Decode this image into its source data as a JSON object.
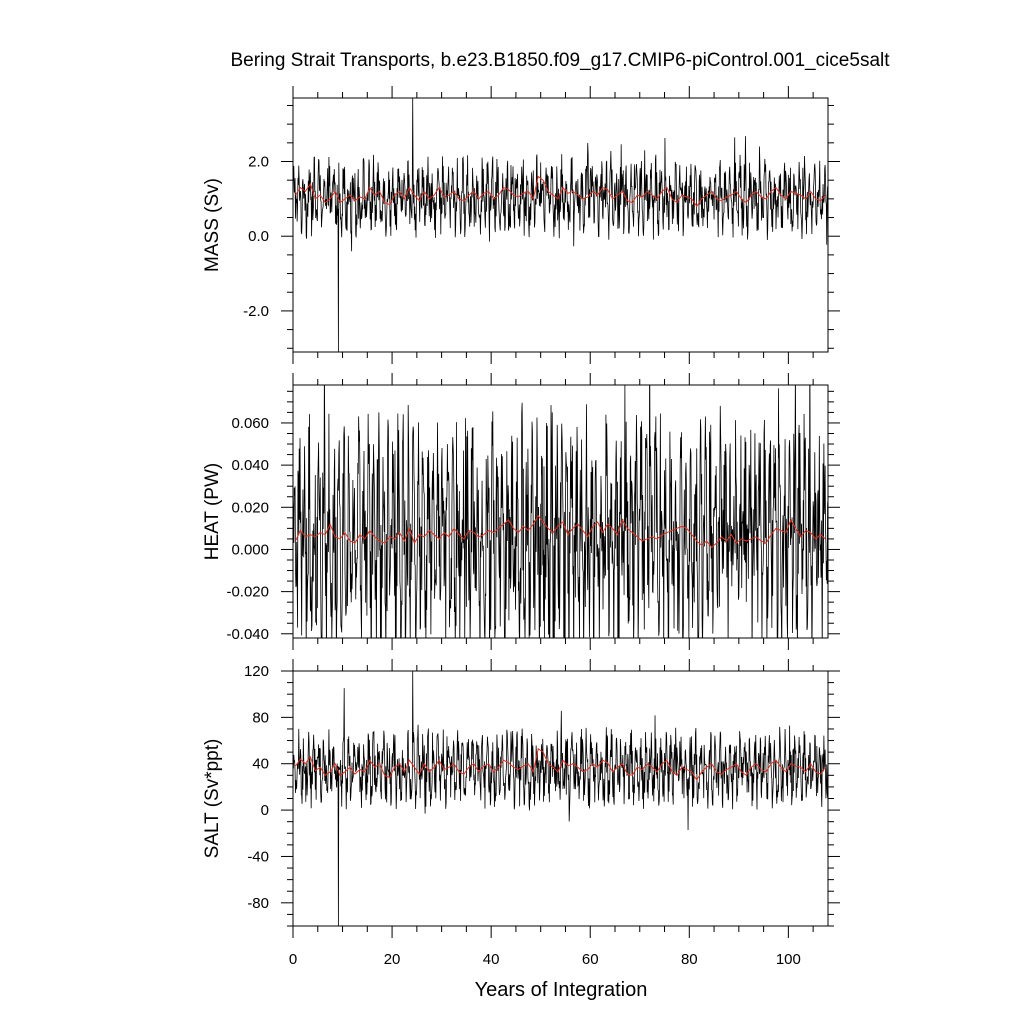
{
  "title": "Bering Strait Transports, b.e23.B1850.f09_g17.CMIP6-piControl.001_cice5salt",
  "xlabel": "Years of Integration",
  "colors": {
    "monthly": "#000000",
    "annual": "#e03020",
    "axis": "#000000",
    "background": "#ffffff"
  },
  "chart_data": [
    {
      "type": "line",
      "ylabel": "MASS (Sv)",
      "xlim": [
        0,
        108
      ],
      "ylim": [
        -3.1,
        3.7
      ],
      "yticks": [
        -2.0,
        0.0,
        2.0
      ],
      "yticklabels": [
        "-2.0",
        "0.0",
        "2.0"
      ],
      "xticks": [
        0,
        20,
        40,
        60,
        80,
        100
      ],
      "xticklabels": [],
      "series": [
        {
          "kind": "monthly",
          "baseline": 1.05,
          "amplitude": 0.55,
          "spike_max": 3.7,
          "spike_min": -3.1,
          "spike_max_x": 24.2,
          "spike_min_x": 9.2
        },
        {
          "kind": "annual",
          "x": [
            0.5,
            1.5,
            2.5,
            3.5,
            4.5,
            5.5,
            6.5,
            7.5,
            8.5,
            9.5,
            10.5,
            11.5,
            12.5,
            13.5,
            14.5,
            15.5,
            16.5,
            17.5,
            18.5,
            19.5,
            20.5,
            21.5,
            22.5,
            23.5,
            24.5,
            25.5,
            26.5,
            27.5,
            28.5,
            29.5,
            30.5,
            31.5,
            32.5,
            33.5,
            34.5,
            35.5,
            36.5,
            37.5,
            38.5,
            39.5,
            40.5,
            41.5,
            42.5,
            43.5,
            44.5,
            45.5,
            46.5,
            47.5,
            48.5,
            49.5,
            50.5,
            51.5,
            52.5,
            53.5,
            54.5,
            55.5,
            56.5,
            57.5,
            58.5,
            59.5,
            60.5,
            61.5,
            62.5,
            63.5,
            64.5,
            65.5,
            66.5,
            67.5,
            68.5,
            69.5,
            70.5,
            71.5,
            72.5,
            73.5,
            74.5,
            75.5,
            76.5,
            77.5,
            78.5,
            79.5,
            80.5,
            81.5,
            82.5,
            83.5,
            84.5,
            85.5,
            86.5,
            87.5,
            88.5,
            89.5,
            90.5,
            91.5,
            92.5,
            93.5,
            94.5,
            95.5,
            96.5,
            97.5,
            98.5,
            99.5,
            100.5,
            101.5,
            102.5,
            103.5,
            104.5,
            105.5,
            106.5,
            107.5
          ],
          "values": [
            1.1,
            1.3,
            1.2,
            1.4,
            1.0,
            1.1,
            0.9,
            1.0,
            1.2,
            0.9,
            1.0,
            1.1,
            0.95,
            1.05,
            1.0,
            1.3,
            1.1,
            1.2,
            0.9,
            0.85,
            1.1,
            1.2,
            1.0,
            1.3,
            1.1,
            0.95,
            1.2,
            1.0,
            1.1,
            1.3,
            1.05,
            1.1,
            1.2,
            1.0,
            0.95,
            1.1,
            1.2,
            1.0,
            1.15,
            1.2,
            1.0,
            1.1,
            1.3,
            1.25,
            1.1,
            1.05,
            1.15,
            1.2,
            1.0,
            1.6,
            1.5,
            1.2,
            1.1,
            1.0,
            1.3,
            1.15,
            1.2,
            1.1,
            1.0,
            1.05,
            1.2,
            1.1,
            1.3,
            1.25,
            1.0,
            1.1,
            1.2,
            0.95,
            0.9,
            1.1,
            1.05,
            1.2,
            1.1,
            1.0,
            1.2,
            1.3,
            1.0,
            0.9,
            1.1,
            1.05,
            1.0,
            0.8,
            1.0,
            1.1,
            1.2,
            1.0,
            0.95,
            1.05,
            1.1,
            1.2,
            1.0,
            0.9,
            1.1,
            1.2,
            1.05,
            1.0,
            1.2,
            1.3,
            1.1,
            1.0,
            1.2,
            1.15,
            1.1,
            1.0,
            1.2,
            1.0,
            0.95,
            1.1
          ]
        }
      ]
    },
    {
      "type": "line",
      "ylabel": "HEAT (PW)",
      "xlim": [
        0,
        108
      ],
      "ylim": [
        -0.042,
        0.078
      ],
      "yticks": [
        -0.04,
        -0.02,
        0.0,
        0.02,
        0.04,
        0.06
      ],
      "yticklabels": [
        "-0.040",
        "-0.020",
        "0.000",
        "0.020",
        "0.040",
        "0.060"
      ],
      "xticks": [
        0,
        20,
        40,
        60,
        80,
        100
      ],
      "xticklabels": [],
      "series": [
        {
          "kind": "monthly",
          "baseline": 0.007,
          "amplitude": 0.03,
          "spike_max": 0.078,
          "spike_min": -0.042,
          "spike_max_x": 67.0,
          "spike_min_x": 20.8
        },
        {
          "kind": "annual",
          "x": [
            0.5,
            1.5,
            2.5,
            3.5,
            4.5,
            5.5,
            6.5,
            7.5,
            8.5,
            9.5,
            10.5,
            11.5,
            12.5,
            13.5,
            14.5,
            15.5,
            16.5,
            17.5,
            18.5,
            19.5,
            20.5,
            21.5,
            22.5,
            23.5,
            24.5,
            25.5,
            26.5,
            27.5,
            28.5,
            29.5,
            30.5,
            31.5,
            32.5,
            33.5,
            34.5,
            35.5,
            36.5,
            37.5,
            38.5,
            39.5,
            40.5,
            41.5,
            42.5,
            43.5,
            44.5,
            45.5,
            46.5,
            47.5,
            48.5,
            49.5,
            50.5,
            51.5,
            52.5,
            53.5,
            54.5,
            55.5,
            56.5,
            57.5,
            58.5,
            59.5,
            60.5,
            61.5,
            62.5,
            63.5,
            64.5,
            65.5,
            66.5,
            67.5,
            68.5,
            69.5,
            70.5,
            71.5,
            72.5,
            73.5,
            74.5,
            75.5,
            76.5,
            77.5,
            78.5,
            79.5,
            80.5,
            81.5,
            82.5,
            83.5,
            84.5,
            85.5,
            86.5,
            87.5,
            88.5,
            89.5,
            90.5,
            91.5,
            92.5,
            93.5,
            94.5,
            95.5,
            96.5,
            97.5,
            98.5,
            99.5,
            100.5,
            101.5,
            102.5,
            103.5,
            104.5,
            105.5,
            106.5,
            107.5
          ],
          "values": [
            0.004,
            0.009,
            0.006,
            0.007,
            0.006,
            0.008,
            0.007,
            0.012,
            0.006,
            0.005,
            0.008,
            0.004,
            0.003,
            0.007,
            0.005,
            0.009,
            0.006,
            0.004,
            0.003,
            0.006,
            0.005,
            0.008,
            0.004,
            0.01,
            0.003,
            0.007,
            0.006,
            0.009,
            0.007,
            0.005,
            0.008,
            0.006,
            0.01,
            0.007,
            0.005,
            0.009,
            0.008,
            0.006,
            0.007,
            0.009,
            0.008,
            0.01,
            0.012,
            0.014,
            0.01,
            0.008,
            0.011,
            0.009,
            0.012,
            0.016,
            0.013,
            0.01,
            0.008,
            0.011,
            0.013,
            0.007,
            0.01,
            0.012,
            0.009,
            0.006,
            0.011,
            0.013,
            0.008,
            0.012,
            0.01,
            0.007,
            0.014,
            0.01,
            0.008,
            0.006,
            0.004,
            0.005,
            0.006,
            0.005,
            0.007,
            0.008,
            0.009,
            0.01,
            0.011,
            0.01,
            0.007,
            0.004,
            0.002,
            0.004,
            0.001,
            0.003,
            0.006,
            0.004,
            0.007,
            0.003,
            0.005,
            0.004,
            0.005,
            0.006,
            0.004,
            0.003,
            0.007,
            0.01,
            0.009,
            0.008,
            0.014,
            0.01,
            0.006,
            0.009,
            0.008,
            0.005,
            0.007,
            0.005
          ]
        }
      ]
    },
    {
      "type": "line",
      "ylabel": "SALT (Sv*ppt)",
      "xlim": [
        0,
        108
      ],
      "ylim": [
        -100,
        120
      ],
      "yticks": [
        -80,
        -40,
        0,
        40,
        80,
        120
      ],
      "yticklabels": [
        "-80",
        "-40",
        "0",
        "40",
        "80",
        "120"
      ],
      "xticks": [
        0,
        20,
        40,
        60,
        80,
        100
      ],
      "xticklabels": [
        "0",
        "20",
        "40",
        "60",
        "80",
        "100"
      ],
      "series": [
        {
          "kind": "monthly",
          "baseline": 36,
          "amplitude": 18,
          "spike_max": 120,
          "spike_min": -100,
          "spike_max_x": 24.2,
          "spike_min_x": 9.2
        },
        {
          "kind": "annual",
          "x": [
            0.5,
            1.5,
            2.5,
            3.5,
            4.5,
            5.5,
            6.5,
            7.5,
            8.5,
            9.5,
            10.5,
            11.5,
            12.5,
            13.5,
            14.5,
            15.5,
            16.5,
            17.5,
            18.5,
            19.5,
            20.5,
            21.5,
            22.5,
            23.5,
            24.5,
            25.5,
            26.5,
            27.5,
            28.5,
            29.5,
            30.5,
            31.5,
            32.5,
            33.5,
            34.5,
            35.5,
            36.5,
            37.5,
            38.5,
            39.5,
            40.5,
            41.5,
            42.5,
            43.5,
            44.5,
            45.5,
            46.5,
            47.5,
            48.5,
            49.5,
            50.5,
            51.5,
            52.5,
            53.5,
            54.5,
            55.5,
            56.5,
            57.5,
            58.5,
            59.5,
            60.5,
            61.5,
            62.5,
            63.5,
            64.5,
            65.5,
            66.5,
            67.5,
            68.5,
            69.5,
            70.5,
            71.5,
            72.5,
            73.5,
            74.5,
            75.5,
            76.5,
            77.5,
            78.5,
            79.5,
            80.5,
            81.5,
            82.5,
            83.5,
            84.5,
            85.5,
            86.5,
            87.5,
            88.5,
            89.5,
            90.5,
            91.5,
            92.5,
            93.5,
            94.5,
            95.5,
            96.5,
            97.5,
            98.5,
            99.5,
            100.5,
            101.5,
            102.5,
            103.5,
            104.5,
            105.5,
            106.5,
            107.5
          ],
          "values": [
            38,
            44,
            40,
            46,
            34,
            37,
            30,
            33,
            40,
            30,
            33,
            37,
            31,
            35,
            33,
            43,
            37,
            40,
            30,
            28,
            37,
            40,
            33,
            43,
            37,
            31,
            40,
            33,
            37,
            43,
            35,
            37,
            40,
            33,
            31,
            37,
            40,
            33,
            38,
            40,
            33,
            37,
            43,
            41,
            37,
            35,
            38,
            40,
            33,
            53,
            50,
            40,
            37,
            33,
            43,
            38,
            40,
            37,
            33,
            35,
            40,
            37,
            43,
            41,
            33,
            37,
            40,
            31,
            30,
            37,
            35,
            40,
            37,
            33,
            40,
            43,
            33,
            30,
            37,
            35,
            33,
            26,
            33,
            37,
            40,
            33,
            31,
            35,
            37,
            40,
            33,
            30,
            37,
            40,
            35,
            33,
            40,
            43,
            37,
            33,
            40,
            38,
            37,
            33,
            40,
            33,
            31,
            37
          ]
        }
      ]
    }
  ]
}
